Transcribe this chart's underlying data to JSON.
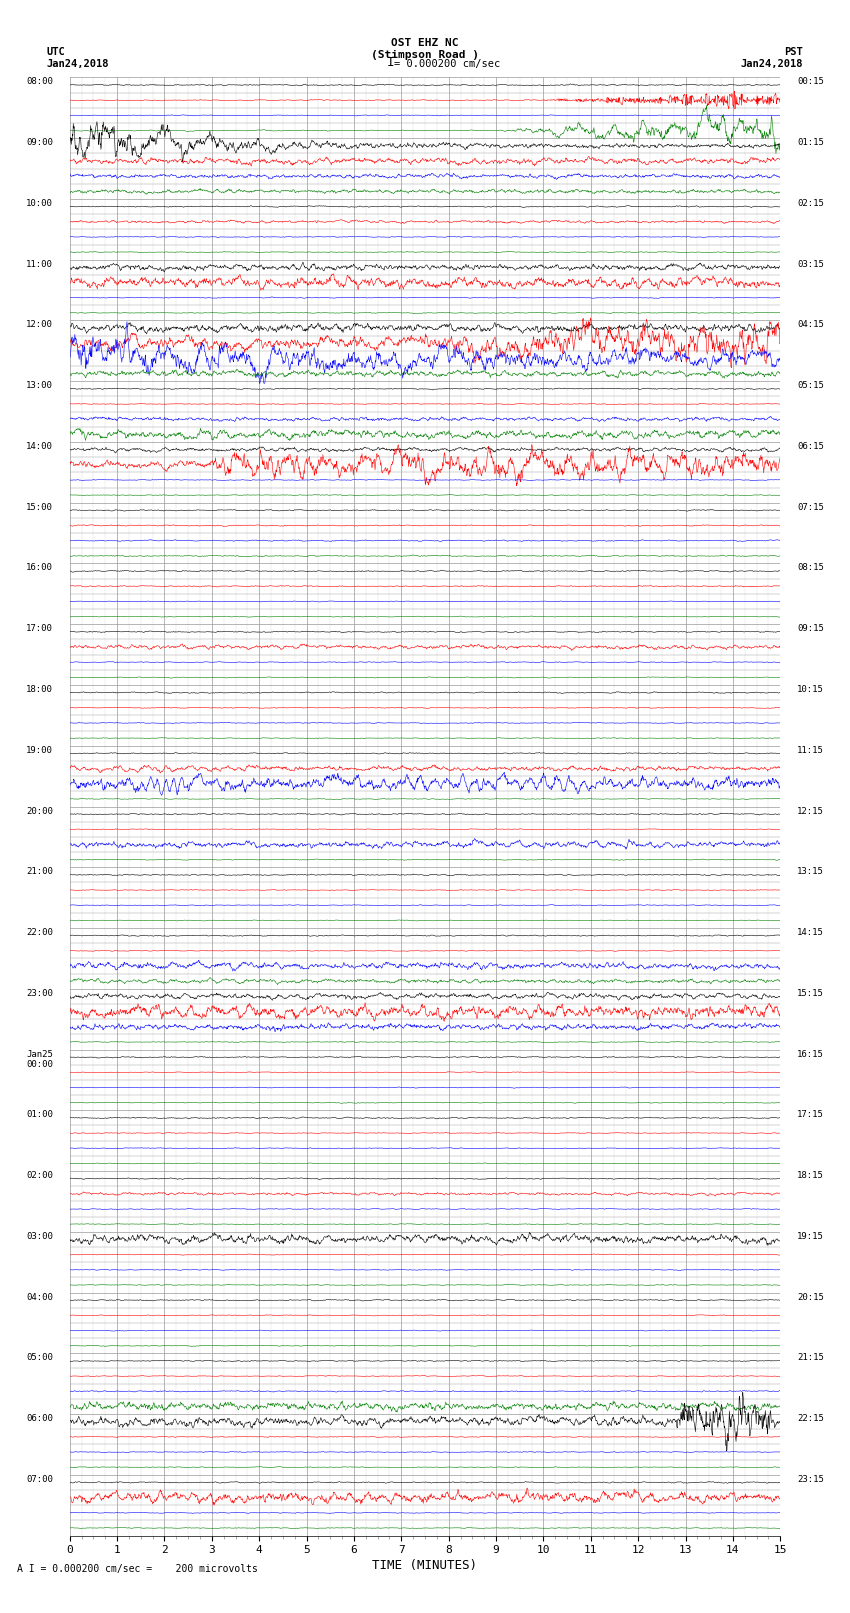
{
  "title_line1": "OST EHZ NC",
  "title_line2": "(Stimpson Road )",
  "scale_label": "I = 0.000200 cm/sec",
  "footer_label": "A I = 0.000200 cm/sec =    200 microvolts",
  "xlabel": "TIME (MINUTES)",
  "background_color": "#ffffff",
  "grid_color": "#999999",
  "trace_colors": [
    "black",
    "red",
    "blue",
    "green"
  ],
  "utc_times_full": [
    "08:00",
    "",
    "",
    "",
    "09:00",
    "",
    "",
    "",
    "10:00",
    "",
    "",
    "",
    "11:00",
    "",
    "",
    "",
    "12:00",
    "",
    "",
    "",
    "13:00",
    "",
    "",
    "",
    "14:00",
    "",
    "",
    "",
    "15:00",
    "",
    "",
    "",
    "16:00",
    "",
    "",
    "",
    "17:00",
    "",
    "",
    "",
    "18:00",
    "",
    "",
    "",
    "19:00",
    "",
    "",
    "",
    "20:00",
    "",
    "",
    "",
    "21:00",
    "",
    "",
    "",
    "22:00",
    "",
    "",
    "",
    "23:00",
    "",
    "",
    "",
    "Jan25\n00:00",
    "",
    "",
    "",
    "01:00",
    "",
    "",
    "",
    "02:00",
    "",
    "",
    "",
    "03:00",
    "",
    "",
    "",
    "04:00",
    "",
    "",
    "",
    "05:00",
    "",
    "",
    "",
    "06:00",
    "",
    "",
    "",
    "07:00",
    "",
    "",
    ""
  ],
  "pst_times_full": [
    "00:15",
    "",
    "",
    "",
    "01:15",
    "",
    "",
    "",
    "02:15",
    "",
    "",
    "",
    "03:15",
    "",
    "",
    "",
    "04:15",
    "",
    "",
    "",
    "05:15",
    "",
    "",
    "",
    "06:15",
    "",
    "",
    "",
    "07:15",
    "",
    "",
    "",
    "08:15",
    "",
    "",
    "",
    "09:15",
    "",
    "",
    "",
    "10:15",
    "",
    "",
    "",
    "11:15",
    "",
    "",
    "",
    "12:15",
    "",
    "",
    "",
    "13:15",
    "",
    "",
    "",
    "14:15",
    "",
    "",
    "",
    "15:15",
    "",
    "",
    "",
    "16:15",
    "",
    "",
    "",
    "17:15",
    "",
    "",
    "",
    "18:15",
    "",
    "",
    "",
    "19:15",
    "",
    "",
    "",
    "20:15",
    "",
    "",
    "",
    "21:15",
    "",
    "",
    "",
    "22:15",
    "",
    "",
    "",
    "23:15",
    "",
    "",
    ""
  ],
  "row_amplitudes": [
    0.012,
    0.008,
    0.008,
    0.008,
    0.28,
    0.06,
    0.04,
    0.04,
    0.012,
    0.025,
    0.008,
    0.008,
    0.06,
    0.1,
    0.008,
    0.008,
    0.08,
    0.25,
    0.3,
    0.06,
    0.012,
    0.008,
    0.04,
    0.08,
    0.04,
    0.2,
    0.008,
    0.008,
    0.012,
    0.012,
    0.012,
    0.012,
    0.012,
    0.012,
    0.008,
    0.008,
    0.012,
    0.04,
    0.008,
    0.008,
    0.012,
    0.008,
    0.008,
    0.008,
    0.012,
    0.05,
    0.12,
    0.008,
    0.012,
    0.008,
    0.06,
    0.008,
    0.012,
    0.008,
    0.008,
    0.008,
    0.012,
    0.008,
    0.06,
    0.04,
    0.05,
    0.12,
    0.06,
    0.008,
    0.012,
    0.008,
    0.008,
    0.008,
    0.012,
    0.008,
    0.008,
    0.008,
    0.012,
    0.025,
    0.008,
    0.008,
    0.08,
    0.008,
    0.008,
    0.008,
    0.012,
    0.008,
    0.008,
    0.008,
    0.012,
    0.008,
    0.012,
    0.08,
    0.22,
    0.008,
    0.008,
    0.008,
    0.012,
    0.1,
    0.008,
    0.008
  ]
}
